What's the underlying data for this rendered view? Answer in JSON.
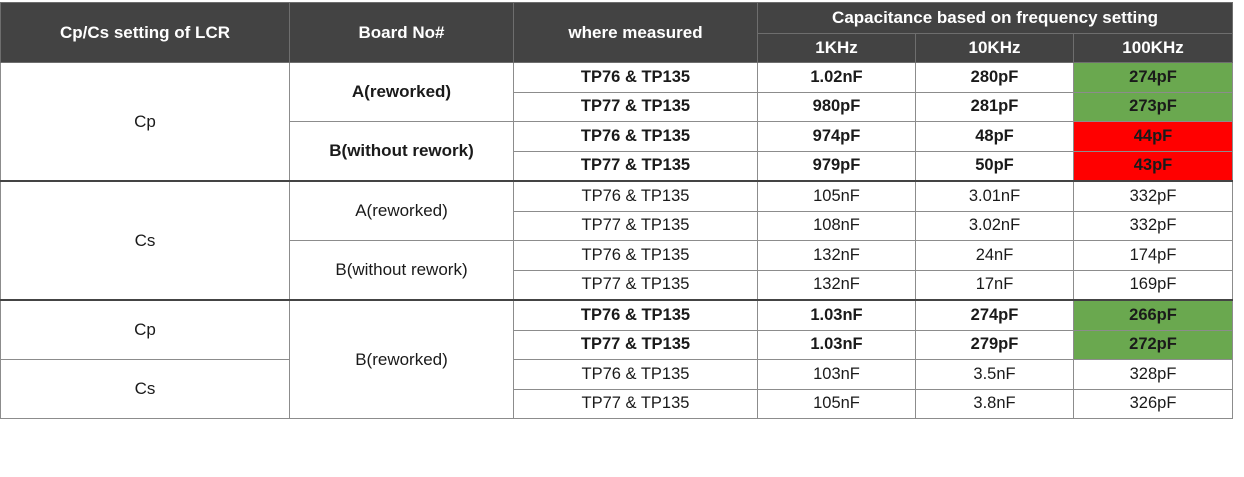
{
  "header": {
    "col1": "Cp/Cs setting of LCR",
    "col2": "Board No#",
    "col3": "where measured",
    "group": "Capacitance based on frequency setting",
    "freqs": [
      "1KHz",
      "10KHz",
      "100KHz"
    ]
  },
  "colors": {
    "header_bg": "#434343",
    "pass": "#6aa84f",
    "fail": "#ff0000"
  },
  "groups": [
    {
      "setting": "Cp",
      "boards": [
        {
          "board": "A(reworked)",
          "rows": [
            {
              "tp": "TP76 & TP135",
              "f1": "1.02nF",
              "f10": "280pF",
              "f100": "274pF",
              "status": "pass"
            },
            {
              "tp": "TP77 & TP135",
              "f1": "980pF",
              "f10": "281pF",
              "f100": "273pF",
              "status": "pass"
            }
          ]
        },
        {
          "board": "B(without rework)",
          "rows": [
            {
              "tp": "TP76 & TP135",
              "f1": "974pF",
              "f10": "48pF",
              "f100": "44pF",
              "status": "fail"
            },
            {
              "tp": "TP77 & TP135",
              "f1": "979pF",
              "f10": "50pF",
              "f100": "43pF",
              "status": "fail"
            }
          ]
        }
      ]
    },
    {
      "setting": "Cs",
      "boards": [
        {
          "board": "A(reworked)",
          "rows": [
            {
              "tp": "TP76 & TP135",
              "f1": "105nF",
              "f10": "3.01nF",
              "f100": "332pF"
            },
            {
              "tp": "TP77 & TP135",
              "f1": "108nF",
              "f10": "3.02nF",
              "f100": "332pF"
            }
          ]
        },
        {
          "board": "B(without rework)",
          "rows": [
            {
              "tp": "TP76 & TP135",
              "f1": "132nF",
              "f10": "24nF",
              "f100": "174pF"
            },
            {
              "tp": "TP77 & TP135",
              "f1": "132nF",
              "f10": "17nF",
              "f100": "169pF"
            }
          ]
        }
      ]
    },
    {
      "setting_top": "Cp",
      "setting_bottom": "Cs",
      "board": "B(reworked)",
      "rows": [
        {
          "tp": "TP76 & TP135",
          "f1": "1.03nF",
          "f10": "274pF",
          "f100": "266pF",
          "status": "pass"
        },
        {
          "tp": "TP77 & TP135",
          "f1": "1.03nF",
          "f10": "279pF",
          "f100": "272pF",
          "status": "pass"
        },
        {
          "tp": "TP76 & TP135",
          "f1": "103nF",
          "f10": "3.5nF",
          "f100": "328pF"
        },
        {
          "tp": "TP77 & TP135",
          "f1": "105nF",
          "f10": "3.8nF",
          "f100": "326pF"
        }
      ]
    }
  ]
}
